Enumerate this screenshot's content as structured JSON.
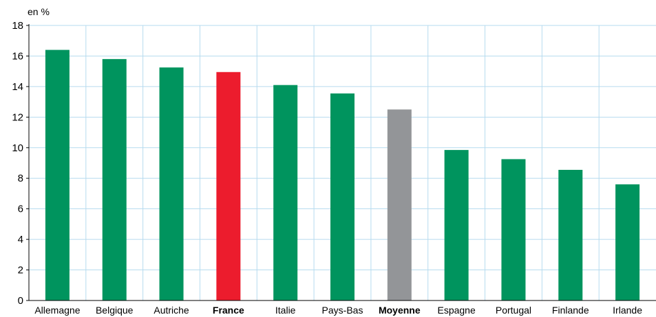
{
  "chart_data": {
    "type": "bar",
    "unit_label": "en %",
    "categories": [
      "Allemagne",
      "Belgique",
      "Autriche",
      "France",
      "Italie",
      "Pays-Bas",
      "Moyenne",
      "Espagne",
      "Portugal",
      "Finlande",
      "Irlande"
    ],
    "values": [
      16.4,
      15.8,
      15.25,
      14.95,
      14.1,
      13.55,
      12.5,
      9.85,
      9.25,
      8.55,
      7.6
    ],
    "highlight": {
      "France": "red",
      "Moyenne": "gray"
    },
    "bold_categories": [
      "France",
      "Moyenne"
    ],
    "ylim": [
      0,
      18
    ],
    "yticks": [
      0,
      2,
      4,
      6,
      8,
      10,
      12,
      14,
      16,
      18
    ],
    "grid": true,
    "colors": {
      "default": "#00945e",
      "red": "#ec1c2d",
      "gray": "#939598",
      "grid": "#b6dbef",
      "axis": "#000000"
    }
  }
}
